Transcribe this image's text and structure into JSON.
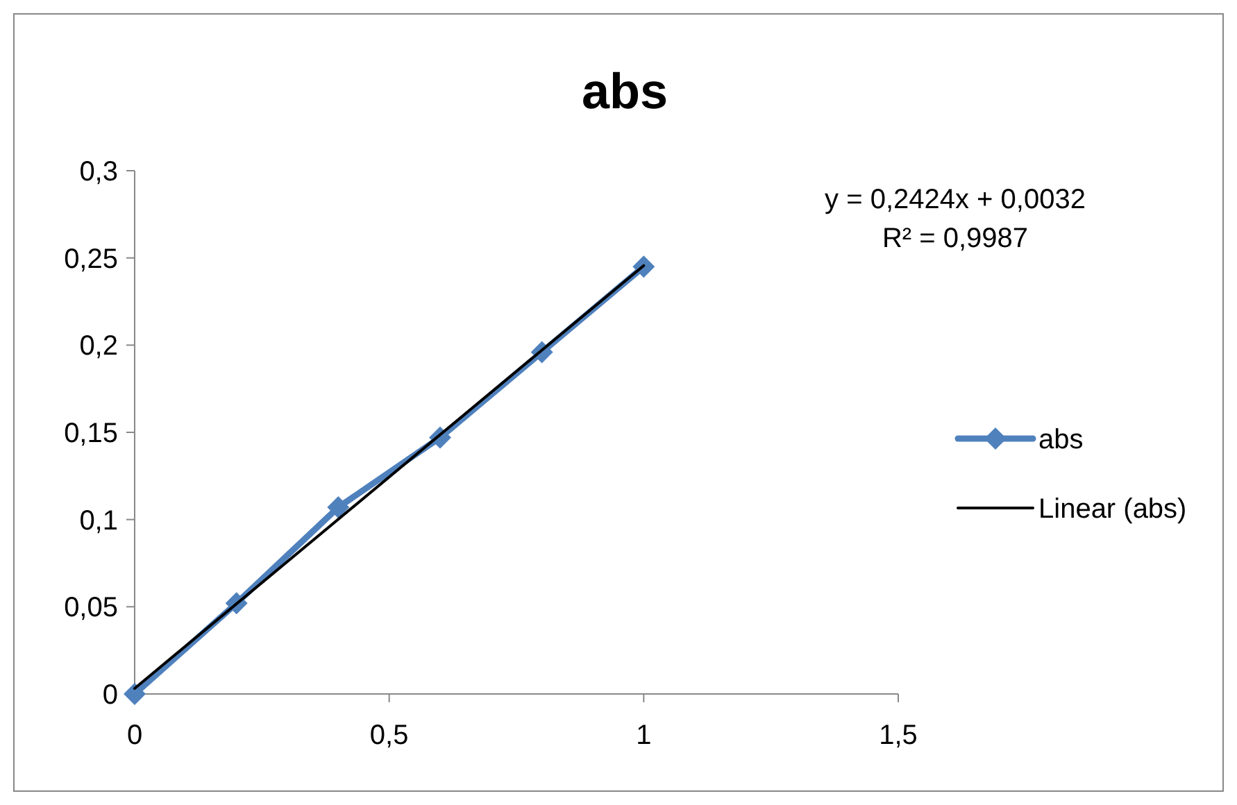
{
  "chart_data": {
    "type": "line",
    "title": "abs",
    "x": [
      0,
      0.2,
      0.4,
      0.6,
      0.8,
      1
    ],
    "series": [
      {
        "name": "abs",
        "color": "#4f81bd",
        "values": [
          0,
          0.052,
          0.107,
          0.147,
          0.196,
          0.245
        ],
        "marker": "diamond"
      },
      {
        "name": "Linear (abs)",
        "color": "#000000",
        "x": [
          0,
          1
        ],
        "values": [
          0.0032,
          0.2456
        ],
        "marker": "none"
      }
    ],
    "xlim": [
      0,
      1.5
    ],
    "xticks": [
      0,
      {
        "value": 0.5,
        "label": "0,5"
      },
      1,
      {
        "value": 1.5,
        "label": "1,5"
      }
    ],
    "ylim": [
      0,
      0.3
    ],
    "yticks": [
      0,
      {
        "value": 0.05,
        "label": "0,05"
      },
      {
        "value": 0.1,
        "label": "0,1"
      },
      {
        "value": 0.15,
        "label": "0,15"
      },
      {
        "value": 0.2,
        "label": "0,2"
      },
      {
        "value": 0.25,
        "label": "0,25"
      },
      {
        "value": 0.3,
        "label": "0,3"
      }
    ],
    "annotations": [
      "y = 0,2424x + 0,0032",
      "R² = 0,9987"
    ],
    "legend": "right",
    "grid": false
  }
}
